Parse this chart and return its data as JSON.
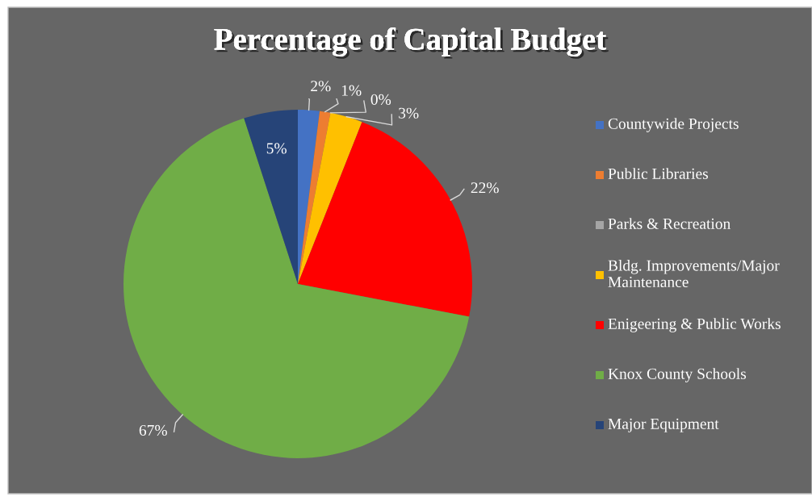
{
  "chart_data": {
    "type": "pie",
    "title": "Percentage of Capital Budget",
    "categories": [
      "Countywide Projects",
      "Public Libraries",
      "Parks & Recreation",
      "Bldg. Improvements/Major Maintenance",
      "Enigeering & Public Works",
      "Knox County Schools",
      "Major Equipment"
    ],
    "values": [
      2,
      1,
      0,
      3,
      22,
      67,
      5
    ],
    "colors": [
      "#4472c4",
      "#ed7d31",
      "#a5a5a5",
      "#ffc000",
      "#ff0000",
      "#70ad47",
      "#264478"
    ],
    "value_labels": [
      "2%",
      "1%",
      "0%",
      "3%",
      "22%",
      "67%",
      "5%"
    ],
    "legend": "right"
  }
}
